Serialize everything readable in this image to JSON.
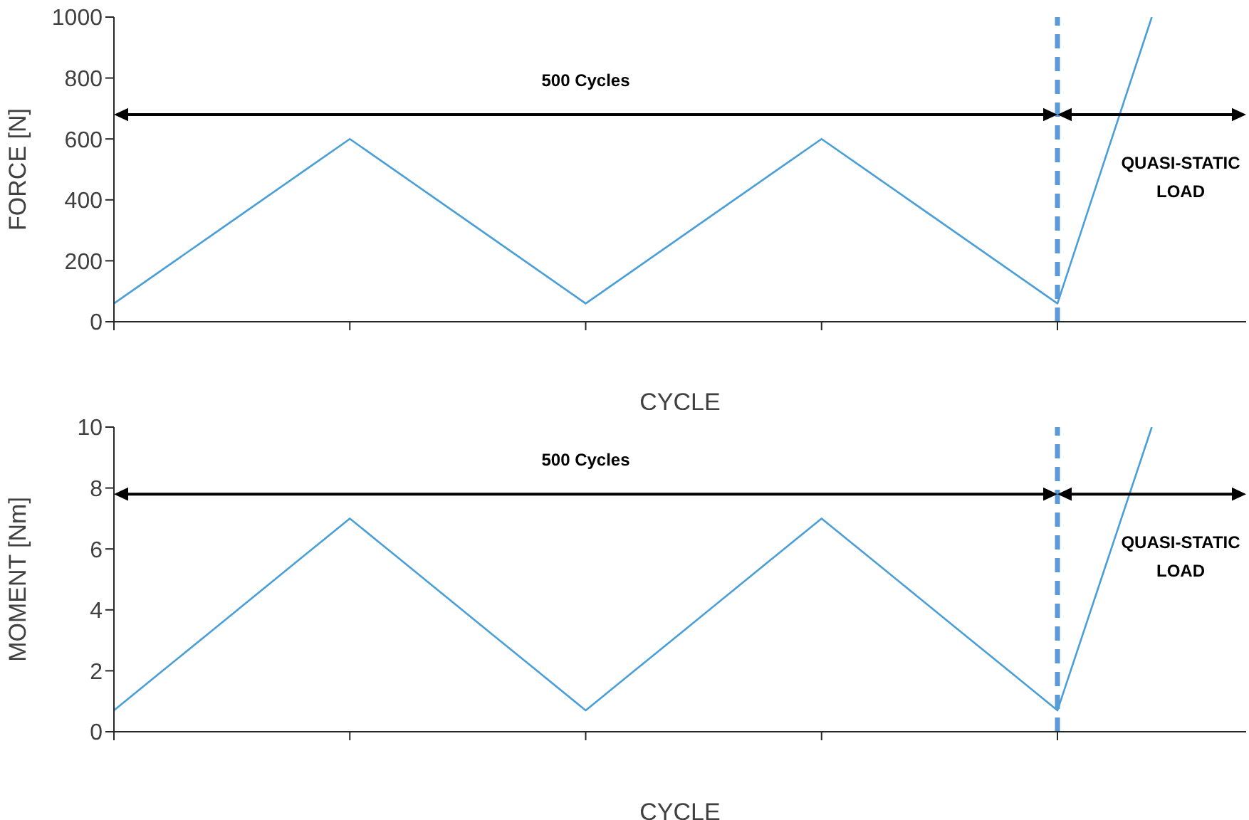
{
  "chart_data": [
    {
      "type": "line",
      "xlabel": "CYCLE",
      "ylabel": "FORCE [N]",
      "categories": [
        null,
        null,
        null,
        null,
        null,
        null,
        null,
        null,
        null,
        null,
        null,
        null,
        null,
        null,
        null,
        null,
        null,
        null,
        null,
        null,
        null,
        null,
        null,
        null,
        null
      ],
      "series": [
        {
          "color": "#4a9fd8",
          "values": [
            60,
            168,
            276,
            384,
            492,
            600,
            492,
            384,
            276,
            168,
            60,
            168,
            276,
            384,
            492,
            600,
            492,
            384,
            276,
            168,
            60,
            530,
            1000,
            null,
            null
          ]
        }
      ],
      "ylim": [
        0,
        1000
      ],
      "yticks": [
        0,
        200,
        400,
        600,
        800,
        1000
      ],
      "tick_labels": "y",
      "line_style": "solid",
      "annotations": [
        "500 Cycles",
        "QUASI-STATIC LOAD"
      ]
    },
    {
      "type": "line",
      "xlabel": "CYCLE",
      "ylabel": "MOMENT [Nm]",
      "categories": [
        null,
        null,
        null,
        null,
        null,
        null,
        null,
        null,
        null,
        null,
        null,
        null,
        null,
        null,
        null,
        null,
        null,
        null,
        null,
        null,
        null,
        null,
        null,
        null,
        null
      ],
      "series": [
        {
          "color": "#4a9fd8",
          "values": [
            0.7,
            1.96,
            3.22,
            4.48,
            5.74,
            7,
            5.74,
            4.48,
            3.22,
            1.96,
            0.7,
            1.96,
            3.22,
            4.48,
            5.74,
            7,
            5.74,
            4.48,
            3.22,
            1.96,
            0.7,
            5.35,
            10,
            null,
            null
          ]
        }
      ],
      "ylim": [
        0,
        10
      ],
      "yticks": [
        0,
        2,
        4,
        6,
        8,
        10
      ],
      "tick_labels": "y",
      "line_style": "solid",
      "annotations": [
        "500 Cycles",
        "QUASI-STATIC LOAD"
      ]
    }
  ]
}
